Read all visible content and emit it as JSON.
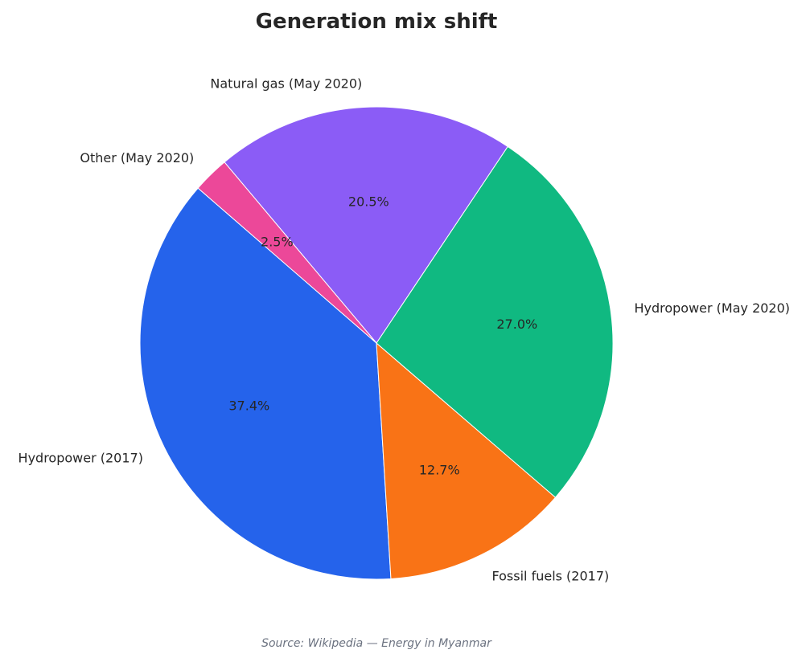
{
  "chart_data": {
    "type": "pie",
    "title": "Generation mix shift",
    "source": "Source: Wikipedia — Energy in Myanmar",
    "start_angle_deg": 139,
    "direction": "counterclockwise",
    "slices": [
      {
        "label": "Hydropower (2017)",
        "value": 37.4,
        "pct_label": "37.4%",
        "color": "#2563eb"
      },
      {
        "label": "Fossil fuels (2017)",
        "value": 12.7,
        "pct_label": "12.7%",
        "color": "#f97316"
      },
      {
        "label": "Hydropower (May 2020)",
        "value": 27.0,
        "pct_label": "27.0%",
        "color": "#10b981"
      },
      {
        "label": "Natural gas (May 2020)",
        "value": 20.5,
        "pct_label": "20.5%",
        "color": "#8b5cf6"
      },
      {
        "label": "Other (May 2020)",
        "value": 2.5,
        "pct_label": "2.5%",
        "color": "#ec4899"
      }
    ]
  }
}
